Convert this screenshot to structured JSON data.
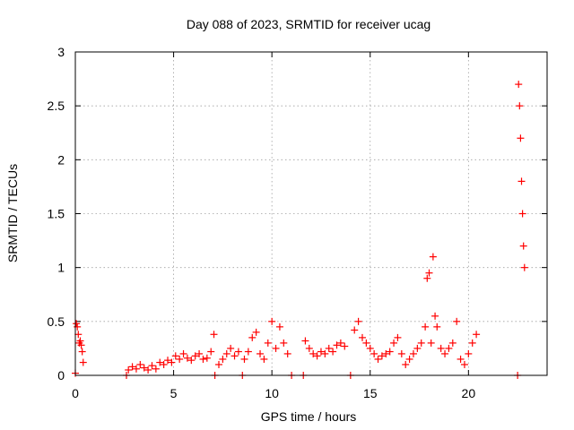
{
  "chart_data": {
    "type": "scatter",
    "title": "Day 088 of 2023, SRMTID for receiver ucag",
    "xlabel": "GPS time / hours",
    "ylabel": "SRMTID / TECUs",
    "xlim": [
      0,
      24
    ],
    "ylim": [
      0,
      3
    ],
    "xticks": [
      0,
      5,
      10,
      15,
      20
    ],
    "xtick_labels": [
      "0",
      "5",
      "10",
      "15",
      "20"
    ],
    "yticks": [
      0,
      0.5,
      1,
      1.5,
      2,
      2.5,
      3
    ],
    "ytick_labels": [
      "0",
      "0.5",
      "1",
      "1.5",
      "2",
      "2.5",
      "3"
    ],
    "grid": true,
    "marker": "plus",
    "series": [
      {
        "name": "SRMTID",
        "color": "#ff0000",
        "x": [
          0.0,
          0.05,
          0.1,
          0.15,
          0.2,
          0.25,
          0.3,
          0.35,
          0.4,
          2.6,
          2.7,
          2.9,
          3.1,
          3.3,
          3.5,
          3.7,
          3.9,
          4.1,
          4.3,
          4.5,
          4.7,
          4.9,
          5.1,
          5.3,
          5.5,
          5.7,
          5.9,
          6.1,
          6.3,
          6.5,
          6.7,
          6.9,
          7.05,
          7.1,
          7.3,
          7.5,
          7.7,
          7.9,
          8.1,
          8.3,
          8.5,
          8.6,
          8.8,
          9.0,
          9.2,
          9.4,
          9.6,
          9.8,
          10.0,
          10.2,
          10.4,
          10.6,
          10.8,
          11.0,
          11.6,
          11.7,
          11.9,
          12.1,
          12.3,
          12.5,
          12.7,
          12.9,
          13.1,
          13.3,
          13.5,
          13.7,
          14.0,
          14.2,
          14.4,
          14.6,
          14.8,
          15.0,
          15.2,
          15.4,
          15.6,
          15.8,
          16.0,
          16.2,
          16.4,
          16.6,
          16.8,
          17.0,
          17.2,
          17.4,
          17.6,
          17.8,
          17.9,
          18.0,
          18.1,
          18.2,
          18.3,
          18.4,
          18.6,
          18.8,
          19.0,
          19.2,
          19.4,
          19.6,
          19.8,
          20.0,
          20.2,
          20.4,
          22.5,
          22.55,
          22.6,
          22.65,
          22.7,
          22.75,
          22.8,
          22.85
        ],
        "y": [
          0.02,
          0.48,
          0.45,
          0.38,
          0.3,
          0.32,
          0.28,
          0.22,
          0.12,
          0.0,
          0.05,
          0.08,
          0.06,
          0.1,
          0.07,
          0.05,
          0.09,
          0.06,
          0.12,
          0.1,
          0.14,
          0.12,
          0.18,
          0.15,
          0.2,
          0.16,
          0.14,
          0.18,
          0.2,
          0.15,
          0.16,
          0.22,
          0.38,
          0.0,
          0.1,
          0.15,
          0.2,
          0.25,
          0.18,
          0.22,
          0.0,
          0.15,
          0.22,
          0.35,
          0.4,
          0.2,
          0.15,
          0.3,
          0.5,
          0.25,
          0.45,
          0.3,
          0.2,
          0.0,
          0.0,
          0.32,
          0.25,
          0.2,
          0.18,
          0.22,
          0.2,
          0.25,
          0.22,
          0.28,
          0.3,
          0.27,
          0.0,
          0.42,
          0.5,
          0.35,
          0.3,
          0.25,
          0.2,
          0.15,
          0.18,
          0.2,
          0.22,
          0.3,
          0.35,
          0.2,
          0.1,
          0.15,
          0.2,
          0.25,
          0.3,
          0.45,
          0.9,
          0.95,
          0.3,
          1.1,
          0.55,
          0.45,
          0.25,
          0.2,
          0.25,
          0.3,
          0.5,
          0.15,
          0.1,
          0.2,
          0.3,
          0.38,
          0.0,
          2.7,
          2.5,
          2.2,
          1.8,
          1.5,
          1.2,
          1.0
        ]
      }
    ]
  }
}
